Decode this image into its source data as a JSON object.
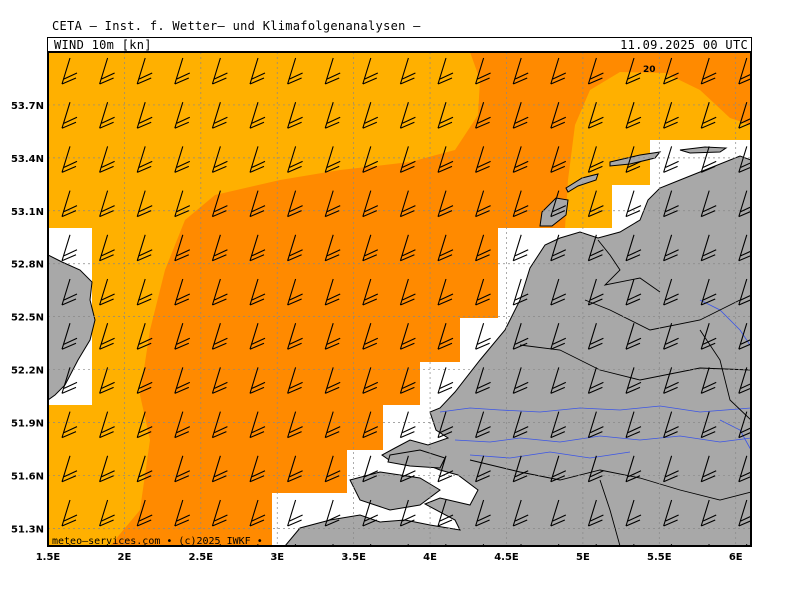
{
  "header": {
    "title": "CETA — Inst. f. Wetter— und Klimafolgenanalysen —",
    "parameter": "WIND 10m [kn]",
    "datetime": "11.09.2025 00 UTC"
  },
  "map": {
    "lon_range": [
      1.5,
      6.1
    ],
    "lat_range": [
      51.2,
      54.0
    ],
    "lon_ticks": [
      "1.5E",
      "2E",
      "2.5E",
      "3E",
      "3.5E",
      "4E",
      "4.5E",
      "5E",
      "5.5E",
      "6E"
    ],
    "lat_ticks": [
      "53.7N",
      "53.4N",
      "53.1N",
      "52.8N",
      "52.5N",
      "52.2N",
      "51.9N",
      "51.6N",
      "51.3N"
    ],
    "contour_labels": [
      "20"
    ],
    "wind_speed_classes_kn": [
      15,
      20
    ],
    "colors": {
      "land": "#a8a8a8",
      "wind_15_20": "#ffb000",
      "wind_above_20": "#ff8a00",
      "sea": "#ffffff",
      "rivers": "#3b55e6",
      "grid": "#888888"
    },
    "barb_style": "wind-barbs, SW flow",
    "credit": "meteo—services.com • (c)2025 IWKF •"
  }
}
